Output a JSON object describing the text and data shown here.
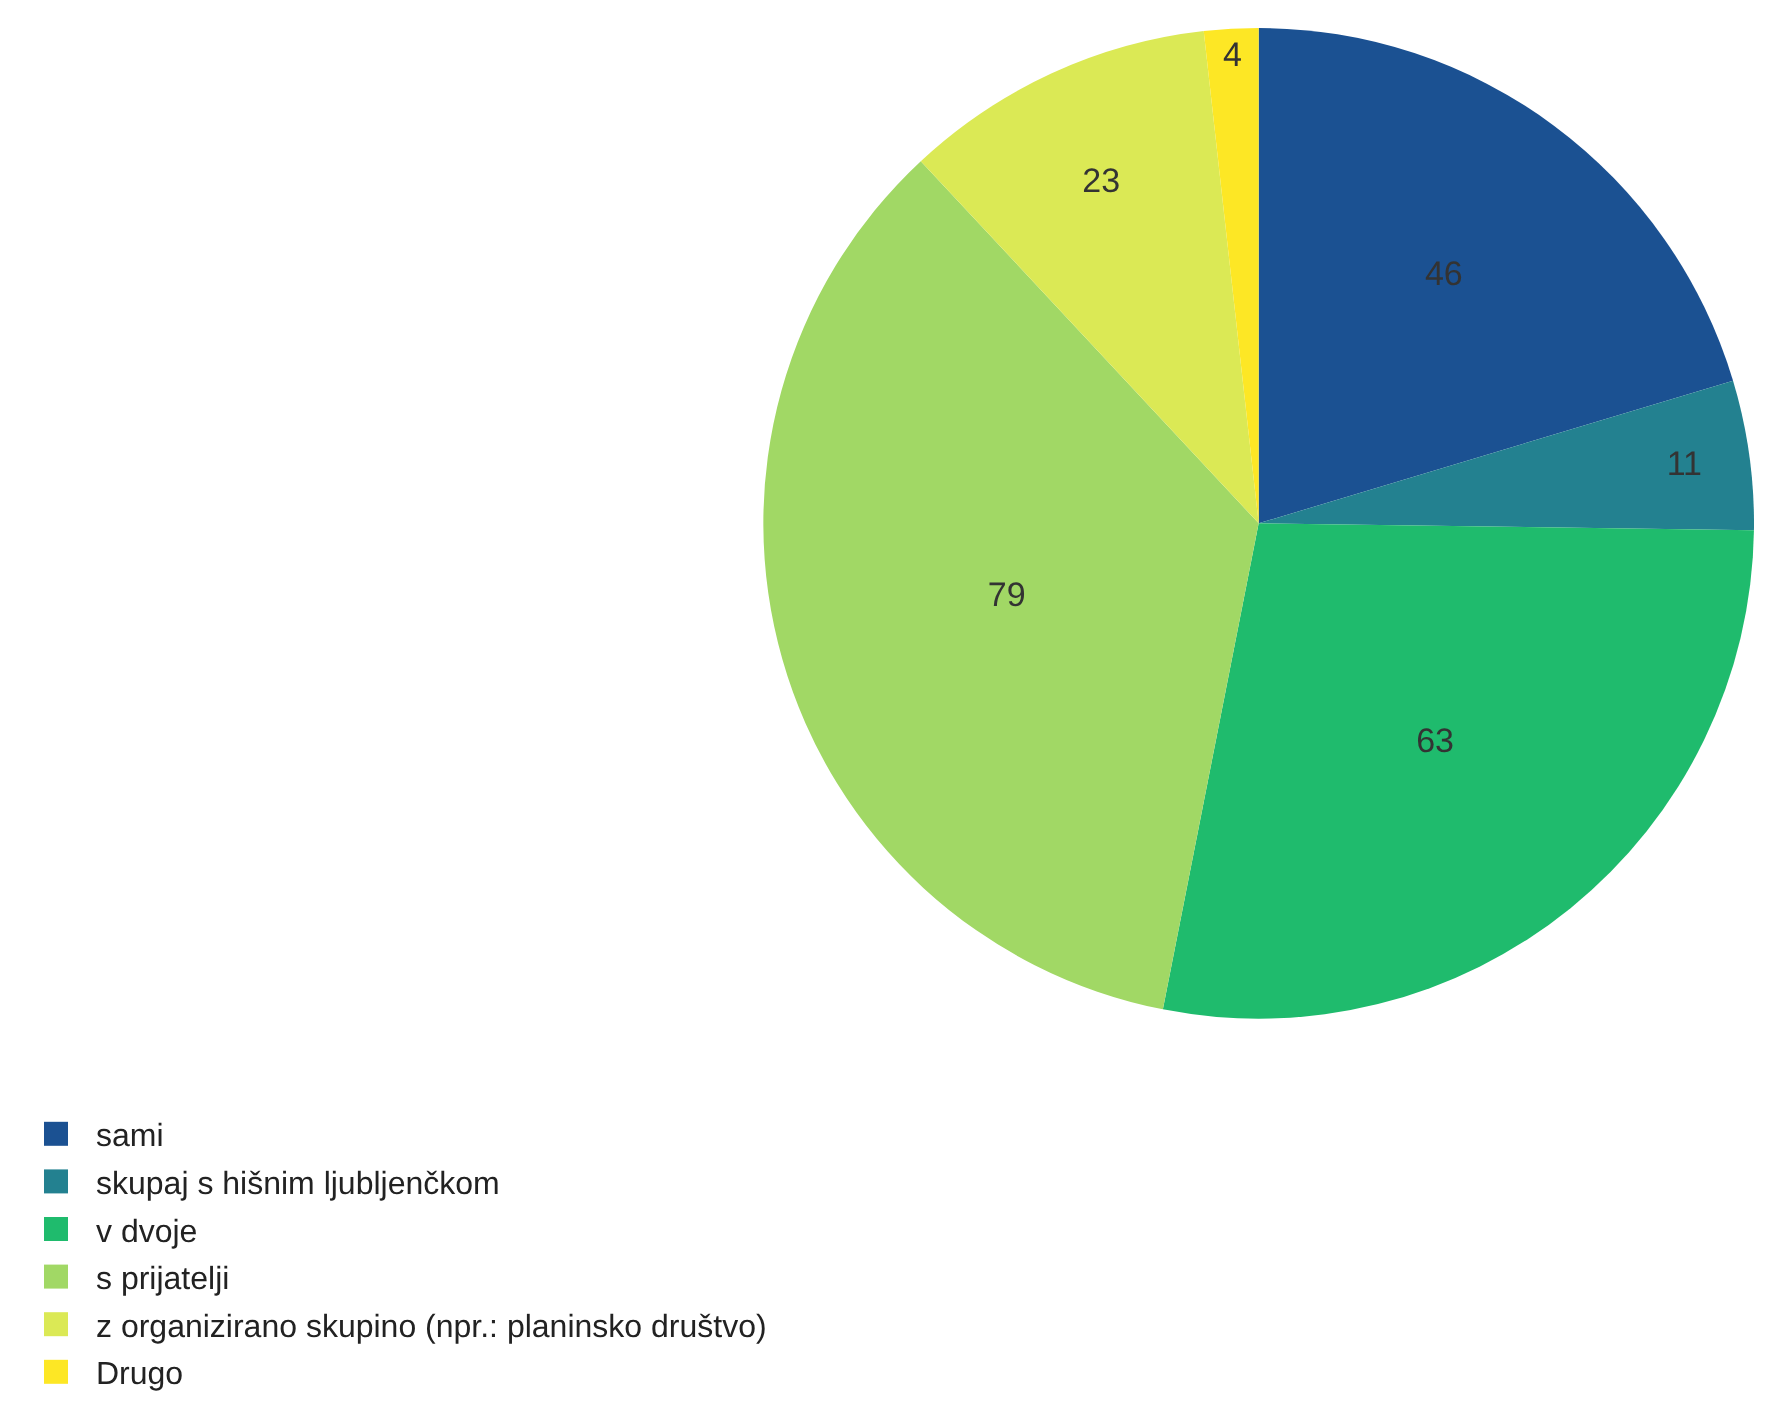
{
  "chart_data": {
    "type": "pie",
    "categories": [
      "sami",
      "skupaj s hišnim ljubljenčkom",
      "v dvoje",
      "s prijatelji",
      "z organizirano skupino (npr.: planinsko društvo)",
      "Drugo"
    ],
    "values": [
      46,
      11,
      63,
      79,
      23,
      4
    ],
    "colors": [
      "#1b5192",
      "#238190",
      "#1fbb6d",
      "#a1d865",
      "#dbe955",
      "#fde725"
    ],
    "data_labels": true,
    "legend": "bottom left"
  }
}
